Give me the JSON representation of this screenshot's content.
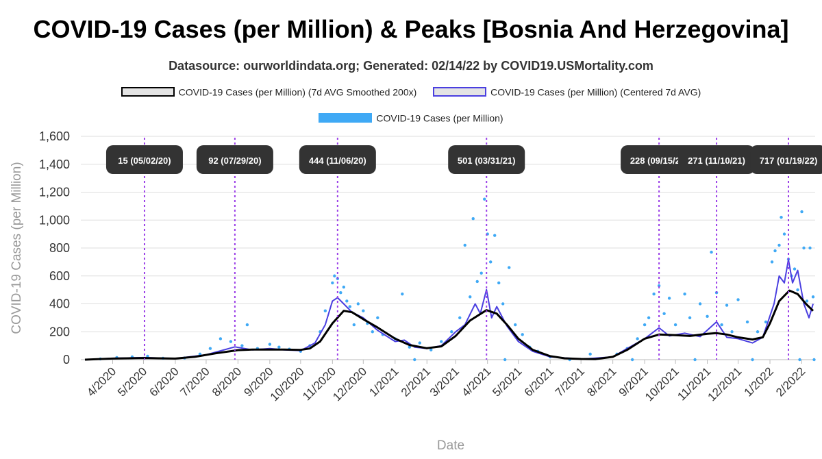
{
  "title": "COVID-19 Cases (per Million) & Peaks [Bosnia And Herzegovina]",
  "subtitle": "Datasource: ourworldindata.org; Generated: 02/14/22 by COVID19.USMortality.com",
  "legend": [
    {
      "label": "COVID-19 Cases (per Million) (7d AVG Smoothed 200x)",
      "fill": "#e4e4e4",
      "stroke": "#000000"
    },
    {
      "label": "COVID-19 Cases (per Million) (Centered 7d AVG)",
      "fill": "#e4e4e4",
      "stroke": "#4a3fe0"
    },
    {
      "label": "COVID-19 Cases (per Million)",
      "fill": "#3fa9f5",
      "stroke": "#3fa9f5"
    }
  ],
  "chart_data": {
    "type": "line",
    "xlabel": "Date",
    "ylabel": "COVID-19 Cases (per Million)",
    "ylim": [
      0,
      1600
    ],
    "yticks": [
      "0",
      "200",
      "400",
      "600",
      "800",
      "1,000",
      "1,200",
      "1,400",
      "1,600"
    ],
    "xlim": [
      "2020-03-01",
      "2022-02-14"
    ],
    "xticks": [
      {
        "label": "4/2020",
        "date": "2020-04-01"
      },
      {
        "label": "5/2020",
        "date": "2020-05-01"
      },
      {
        "label": "6/2020",
        "date": "2020-06-01"
      },
      {
        "label": "7/2020",
        "date": "2020-07-01"
      },
      {
        "label": "8/2020",
        "date": "2020-08-01"
      },
      {
        "label": "9/2020",
        "date": "2020-09-01"
      },
      {
        "label": "10/2020",
        "date": "2020-10-01"
      },
      {
        "label": "11/2020",
        "date": "2020-11-01"
      },
      {
        "label": "12/2020",
        "date": "2020-12-01"
      },
      {
        "label": "1/2021",
        "date": "2021-01-01"
      },
      {
        "label": "2/2021",
        "date": "2021-02-01"
      },
      {
        "label": "3/2021",
        "date": "2021-03-01"
      },
      {
        "label": "4/2021",
        "date": "2021-04-01"
      },
      {
        "label": "5/2021",
        "date": "2021-05-01"
      },
      {
        "label": "6/2021",
        "date": "2021-06-01"
      },
      {
        "label": "7/2021",
        "date": "2021-07-01"
      },
      {
        "label": "8/2021",
        "date": "2021-08-01"
      },
      {
        "label": "9/2021",
        "date": "2021-09-01"
      },
      {
        "label": "10/2021",
        "date": "2021-10-01"
      },
      {
        "label": "11/2021",
        "date": "2021-11-01"
      },
      {
        "label": "12/2021",
        "date": "2021-12-01"
      },
      {
        "label": "1/2022",
        "date": "2022-01-01"
      },
      {
        "label": "2/2022",
        "date": "2022-02-01"
      }
    ],
    "peaks": [
      {
        "label": "15 (05/02/20)",
        "date": "2020-05-02",
        "value": 15
      },
      {
        "label": "92 (07/29/20)",
        "date": "2020-07-29",
        "value": 92
      },
      {
        "label": "444 (11/06/20)",
        "date": "2020-11-06",
        "value": 444
      },
      {
        "label": "501 (03/31/21)",
        "date": "2021-03-31",
        "value": 501
      },
      {
        "label": "228 (09/15/21)",
        "date": "2021-09-15",
        "value": 228
      },
      {
        "label": "271 (11/10/21)",
        "date": "2021-11-10",
        "value": 271
      },
      {
        "label": "717 (01/19/22)",
        "date": "2022-01-19",
        "value": 717
      }
    ],
    "series": [
      {
        "name": "COVID-19 Cases (per Million) (7d AVG Smoothed 200x)",
        "color": "#000000",
        "points": [
          [
            "2020-03-05",
            0
          ],
          [
            "2020-04-01",
            8
          ],
          [
            "2020-05-01",
            12
          ],
          [
            "2020-06-01",
            8
          ],
          [
            "2020-06-20",
            20
          ],
          [
            "2020-07-10",
            45
          ],
          [
            "2020-08-01",
            68
          ],
          [
            "2020-08-15",
            72
          ],
          [
            "2020-09-01",
            72
          ],
          [
            "2020-09-15",
            72
          ],
          [
            "2020-10-01",
            70
          ],
          [
            "2020-10-10",
            80
          ],
          [
            "2020-10-20",
            130
          ],
          [
            "2020-11-01",
            260
          ],
          [
            "2020-11-12",
            350
          ],
          [
            "2020-11-20",
            340
          ],
          [
            "2020-12-01",
            290
          ],
          [
            "2020-12-15",
            230
          ],
          [
            "2021-01-01",
            150
          ],
          [
            "2021-01-15",
            105
          ],
          [
            "2021-02-01",
            82
          ],
          [
            "2021-02-15",
            95
          ],
          [
            "2021-03-01",
            170
          ],
          [
            "2021-03-15",
            280
          ],
          [
            "2021-03-31",
            355
          ],
          [
            "2021-04-10",
            330
          ],
          [
            "2021-04-20",
            250
          ],
          [
            "2021-05-01",
            150
          ],
          [
            "2021-05-15",
            70
          ],
          [
            "2021-06-01",
            25
          ],
          [
            "2021-06-15",
            10
          ],
          [
            "2021-07-01",
            5
          ],
          [
            "2021-07-15",
            4
          ],
          [
            "2021-08-01",
            20
          ],
          [
            "2021-08-15",
            70
          ],
          [
            "2021-09-01",
            150
          ],
          [
            "2021-09-15",
            180
          ],
          [
            "2021-10-01",
            175
          ],
          [
            "2021-10-15",
            170
          ],
          [
            "2021-11-01",
            185
          ],
          [
            "2021-11-10",
            190
          ],
          [
            "2021-11-20",
            180
          ],
          [
            "2021-12-01",
            160
          ],
          [
            "2021-12-15",
            145
          ],
          [
            "2021-12-25",
            160
          ],
          [
            "2022-01-01",
            260
          ],
          [
            "2022-01-10",
            420
          ],
          [
            "2022-01-20",
            495
          ],
          [
            "2022-01-28",
            470
          ],
          [
            "2022-02-05",
            400
          ],
          [
            "2022-02-12",
            350
          ]
        ]
      },
      {
        "name": "COVID-19 Cases (per Million) (Centered 7d AVG)",
        "color": "#4a3fe0",
        "points": [
          [
            "2020-03-05",
            0
          ],
          [
            "2020-04-01",
            10
          ],
          [
            "2020-05-02",
            15
          ],
          [
            "2020-06-01",
            8
          ],
          [
            "2020-07-01",
            35
          ],
          [
            "2020-07-29",
            92
          ],
          [
            "2020-08-15",
            70
          ],
          [
            "2020-09-01",
            80
          ],
          [
            "2020-09-15",
            70
          ],
          [
            "2020-10-01",
            65
          ],
          [
            "2020-10-15",
            120
          ],
          [
            "2020-10-25",
            250
          ],
          [
            "2020-11-01",
            420
          ],
          [
            "2020-11-06",
            444
          ],
          [
            "2020-11-12",
            400
          ],
          [
            "2020-11-20",
            340
          ],
          [
            "2020-12-01",
            300
          ],
          [
            "2020-12-15",
            210
          ],
          [
            "2021-01-01",
            130
          ],
          [
            "2021-01-10",
            140
          ],
          [
            "2021-01-20",
            90
          ],
          [
            "2021-02-01",
            80
          ],
          [
            "2021-02-15",
            100
          ],
          [
            "2021-03-01",
            200
          ],
          [
            "2021-03-10",
            250
          ],
          [
            "2021-03-20",
            400
          ],
          [
            "2021-03-25",
            330
          ],
          [
            "2021-03-31",
            501
          ],
          [
            "2021-04-05",
            300
          ],
          [
            "2021-04-10",
            380
          ],
          [
            "2021-04-20",
            240
          ],
          [
            "2021-05-01",
            130
          ],
          [
            "2021-05-15",
            60
          ],
          [
            "2021-06-01",
            20
          ],
          [
            "2021-07-01",
            4
          ],
          [
            "2021-08-01",
            20
          ],
          [
            "2021-08-15",
            80
          ],
          [
            "2021-09-01",
            150
          ],
          [
            "2021-09-15",
            228
          ],
          [
            "2021-09-25",
            170
          ],
          [
            "2021-10-10",
            190
          ],
          [
            "2021-10-25",
            165
          ],
          [
            "2021-11-10",
            271
          ],
          [
            "2021-11-20",
            160
          ],
          [
            "2021-12-01",
            150
          ],
          [
            "2021-12-15",
            120
          ],
          [
            "2021-12-25",
            160
          ],
          [
            "2022-01-05",
            400
          ],
          [
            "2022-01-10",
            600
          ],
          [
            "2022-01-15",
            550
          ],
          [
            "2022-01-19",
            717
          ],
          [
            "2022-01-23",
            550
          ],
          [
            "2022-01-28",
            640
          ],
          [
            "2022-02-03",
            400
          ],
          [
            "2022-02-08",
            300
          ],
          [
            "2022-02-12",
            400
          ]
        ]
      },
      {
        "name": "COVID-19 Cases (per Million)",
        "color": "#3fa9f5",
        "points": [
          [
            "2020-03-20",
            5
          ],
          [
            "2020-04-05",
            15
          ],
          [
            "2020-04-20",
            20
          ],
          [
            "2020-05-05",
            25
          ],
          [
            "2020-05-20",
            10
          ],
          [
            "2020-06-10",
            12
          ],
          [
            "2020-06-25",
            40
          ],
          [
            "2020-07-05",
            80
          ],
          [
            "2020-07-15",
            150
          ],
          [
            "2020-07-25",
            130
          ],
          [
            "2020-08-05",
            100
          ],
          [
            "2020-08-10",
            250
          ],
          [
            "2020-08-20",
            80
          ],
          [
            "2020-09-01",
            110
          ],
          [
            "2020-09-10",
            90
          ],
          [
            "2020-09-20",
            75
          ],
          [
            "2020-10-01",
            60
          ],
          [
            "2020-10-10",
            100
          ],
          [
            "2020-10-20",
            200
          ],
          [
            "2020-10-25",
            350
          ],
          [
            "2020-11-01",
            550
          ],
          [
            "2020-11-03",
            600
          ],
          [
            "2020-11-06",
            580
          ],
          [
            "2020-11-09",
            480
          ],
          [
            "2020-11-12",
            520
          ],
          [
            "2020-11-15",
            420
          ],
          [
            "2020-11-18",
            380
          ],
          [
            "2020-11-22",
            250
          ],
          [
            "2020-11-26",
            400
          ],
          [
            "2020-12-01",
            350
          ],
          [
            "2020-12-05",
            260
          ],
          [
            "2020-12-10",
            200
          ],
          [
            "2020-12-15",
            300
          ],
          [
            "2020-12-20",
            180
          ],
          [
            "2021-01-01",
            150
          ],
          [
            "2021-01-08",
            470
          ],
          [
            "2021-01-15",
            90
          ],
          [
            "2021-01-25",
            120
          ],
          [
            "2021-02-05",
            70
          ],
          [
            "2021-02-15",
            130
          ],
          [
            "2021-02-25",
            200
          ],
          [
            "2021-03-05",
            300
          ],
          [
            "2021-03-10",
            820
          ],
          [
            "2021-03-15",
            450
          ],
          [
            "2021-03-18",
            1010
          ],
          [
            "2021-03-22",
            560
          ],
          [
            "2021-03-26",
            620
          ],
          [
            "2021-03-29",
            1150
          ],
          [
            "2021-04-01",
            900
          ],
          [
            "2021-04-04",
            700
          ],
          [
            "2021-04-08",
            890
          ],
          [
            "2021-04-12",
            550
          ],
          [
            "2021-04-16",
            400
          ],
          [
            "2021-04-22",
            660
          ],
          [
            "2021-04-28",
            250
          ],
          [
            "2021-05-05",
            180
          ],
          [
            "2021-05-12",
            90
          ],
          [
            "2021-05-20",
            60
          ],
          [
            "2021-06-01",
            20
          ],
          [
            "2021-07-10",
            40
          ],
          [
            "2021-08-05",
            40
          ],
          [
            "2021-08-15",
            80
          ],
          [
            "2021-08-25",
            150
          ],
          [
            "2021-09-01",
            250
          ],
          [
            "2021-09-05",
            300
          ],
          [
            "2021-09-10",
            470
          ],
          [
            "2021-09-15",
            530
          ],
          [
            "2021-09-20",
            330
          ],
          [
            "2021-09-25",
            440
          ],
          [
            "2021-10-01",
            250
          ],
          [
            "2021-10-10",
            470
          ],
          [
            "2021-10-15",
            300
          ],
          [
            "2021-10-25",
            400
          ],
          [
            "2021-11-01",
            310
          ],
          [
            "2021-11-05",
            770
          ],
          [
            "2021-11-10",
            480
          ],
          [
            "2021-11-15",
            250
          ],
          [
            "2021-11-20",
            390
          ],
          [
            "2021-11-25",
            200
          ],
          [
            "2021-12-01",
            430
          ],
          [
            "2021-12-10",
            270
          ],
          [
            "2021-12-20",
            200
          ],
          [
            "2021-12-28",
            270
          ],
          [
            "2022-01-03",
            700
          ],
          [
            "2022-01-06",
            780
          ],
          [
            "2022-01-10",
            820
          ],
          [
            "2022-01-12",
            1020
          ],
          [
            "2022-01-15",
            900
          ],
          [
            "2022-01-19",
            720
          ],
          [
            "2022-01-22",
            600
          ],
          [
            "2022-01-25",
            650
          ],
          [
            "2022-01-28",
            500
          ],
          [
            "2022-02-01",
            1060
          ],
          [
            "2022-02-03",
            800
          ],
          [
            "2022-02-06",
            420
          ],
          [
            "2022-02-09",
            800
          ],
          [
            "2022-02-12",
            450
          ],
          [
            "2021-01-20",
            0
          ],
          [
            "2021-04-18",
            0
          ],
          [
            "2021-06-20",
            0
          ],
          [
            "2021-08-20",
            0
          ],
          [
            "2021-10-20",
            0
          ],
          [
            "2021-12-15",
            0
          ],
          [
            "2022-01-30",
            0
          ],
          [
            "2022-02-13",
            0
          ]
        ]
      }
    ]
  }
}
